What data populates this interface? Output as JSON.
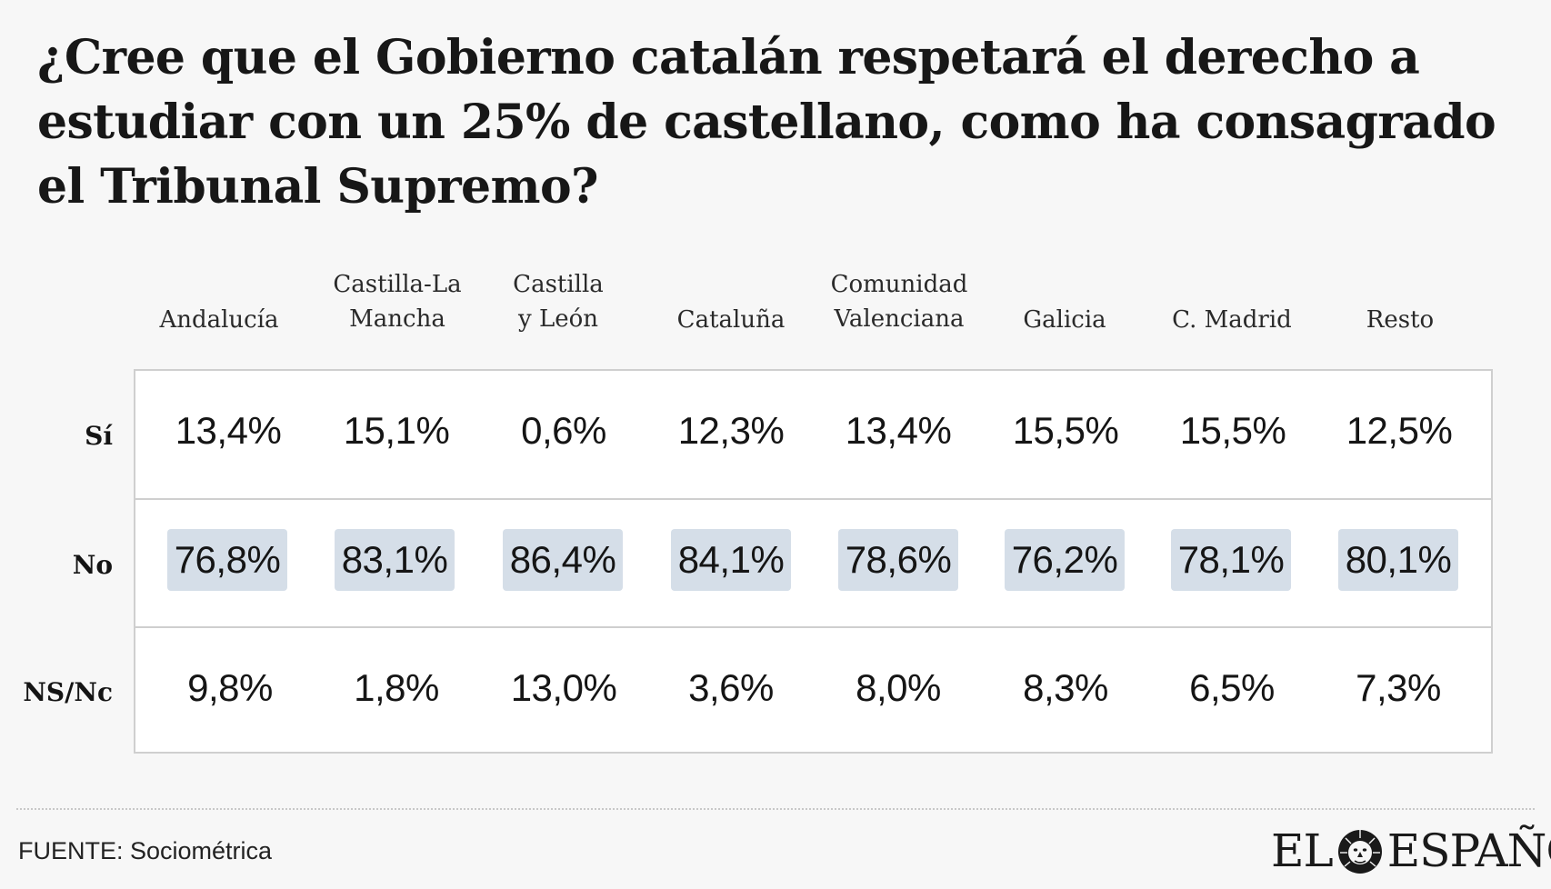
{
  "title": "¿Cree que el Gobierno catalán respetará el derecho a estudiar con un 25% de castellano, como ha consagrado el Tribunal Supremo?",
  "columns": [
    "Andalucía",
    "Castilla-La Mancha",
    "Castilla y León",
    "Cataluña",
    "Comunidad Valenciana",
    "Galicia",
    "C. Madrid",
    "Resto"
  ],
  "header_lines": {
    "castilla_la_mancha_1": "Castilla-La",
    "castilla_la_mancha_2": "Mancha",
    "castilla_y_leon_1": "Castilla",
    "castilla_y_leon_2": "y León",
    "comunidad_valenciana_1": "Comunidad",
    "comunidad_valenciana_2": "Valenciana"
  },
  "rows": [
    {
      "label": "Sí",
      "cells": [
        "13,4%",
        "15,1%",
        "0,6%",
        "12,3%",
        "13,4%",
        "15,5%",
        "15,5%",
        "12,5%"
      ]
    },
    {
      "label": "No",
      "cells": [
        "76,8%",
        "83,1%",
        "86,4%",
        "84,1%",
        "78,6%",
        "76,2%",
        "78,1%",
        "80,1%"
      ]
    },
    {
      "label": "NS/Nc",
      "cells": [
        "9,8%",
        "1,8%",
        "13,0%",
        "3,6%",
        "8,0%",
        "8,3%",
        "6,5%",
        "7,3%"
      ]
    }
  ],
  "chart_data": {
    "type": "table",
    "title": "¿Cree que el Gobierno catalán respetará el derecho a estudiar con un 25% de castellano, como ha consagrado el Tribunal Supremo?",
    "categories": [
      "Andalucía",
      "Castilla-La Mancha",
      "Castilla y León",
      "Cataluña",
      "Comunidad Valenciana",
      "Galicia",
      "C. Madrid",
      "Resto"
    ],
    "series": [
      {
        "name": "Sí",
        "values": [
          13.4,
          15.1,
          0.6,
          12.3,
          13.4,
          15.5,
          15.5,
          12.5
        ]
      },
      {
        "name": "No",
        "values": [
          76.8,
          83.1,
          86.4,
          84.1,
          78.6,
          76.2,
          78.1,
          80.1
        ]
      },
      {
        "name": "NS/Nc",
        "values": [
          9.8,
          1.8,
          13.0,
          3.6,
          8.0,
          8.3,
          6.5,
          7.3
        ]
      }
    ],
    "highlighted_series": "No",
    "unit": "%"
  },
  "highlight_color": "#d5dee8",
  "source": "FUENTE: Sociométrica",
  "logo": {
    "left": "EL",
    "right": "ESPAÑOL"
  }
}
